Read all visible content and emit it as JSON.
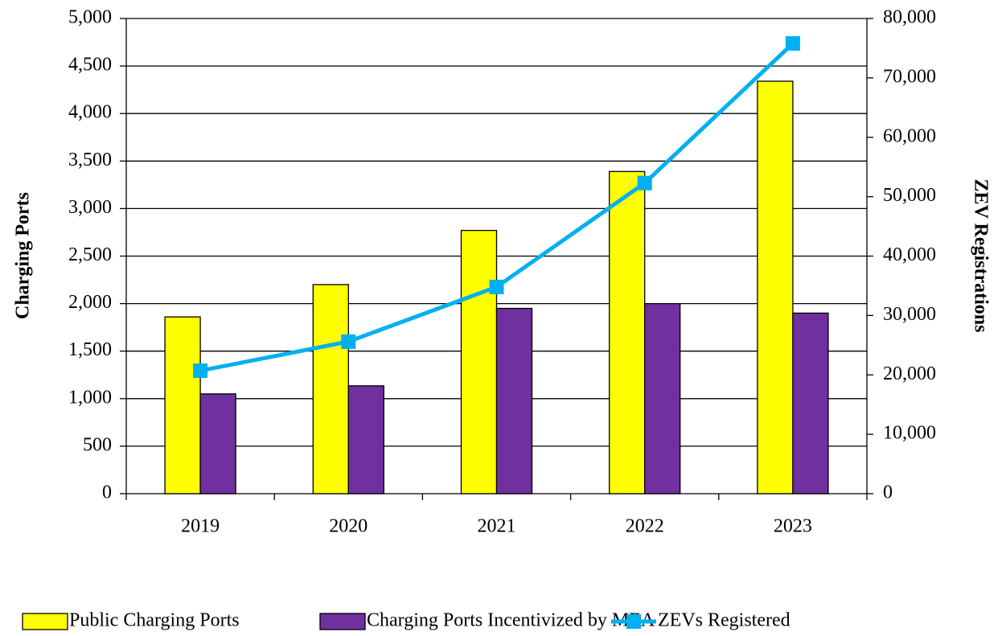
{
  "chart_data": {
    "type": "bar_line",
    "categories": [
      "2019",
      "2020",
      "2021",
      "2022",
      "2023"
    ],
    "y_label": "Charging Ports",
    "y2_label": "ZEV Registrations",
    "series": [
      {
        "name": "Public Charging Ports",
        "color": "#ffff00",
        "values": [
          1860,
          2200,
          2770,
          3390,
          4340
        ]
      },
      {
        "name": "Charging Ports Incentivized by MEA",
        "color": "#7030a0",
        "values": [
          1050,
          1135,
          1950,
          2000,
          1900
        ]
      },
      {
        "name": "ZEVs Registered",
        "color": "#00b0f0",
        "axis": "y2",
        "values": [
          20700,
          25600,
          34800,
          52300,
          75800
        ]
      }
    ],
    "ylim": [
      0,
      5000
    ],
    "yticks": [
      0,
      500,
      {
        "value": 1000,
        "label": "1,000"
      },
      {
        "value": 1500,
        "label": "1,500"
      },
      {
        "value": 2000,
        "label": "2,000"
      },
      {
        "value": 2500,
        "label": "2,500"
      },
      {
        "value": 3000,
        "label": "3,000"
      },
      {
        "value": 3500,
        "label": "3,500"
      },
      {
        "value": 4000,
        "label": "4,000"
      },
      {
        "value": 4500,
        "label": "4,500"
      },
      {
        "value": 5000,
        "label": "5,000"
      }
    ],
    "y2lim": [
      0,
      80000
    ],
    "y2ticks": [
      0,
      {
        "value": 10000,
        "label": "10,000"
      },
      {
        "value": 20000,
        "label": "20,000"
      },
      {
        "value": 30000,
        "label": "30,000"
      },
      {
        "value": 40000,
        "label": "40,000"
      },
      {
        "value": 50000,
        "label": "50,000"
      },
      {
        "value": 60000,
        "label": "60,000"
      },
      {
        "value": 70000,
        "label": "70,000"
      },
      {
        "value": 80000,
        "label": "80,000"
      }
    ],
    "grid": true,
    "legend": "bottom"
  }
}
